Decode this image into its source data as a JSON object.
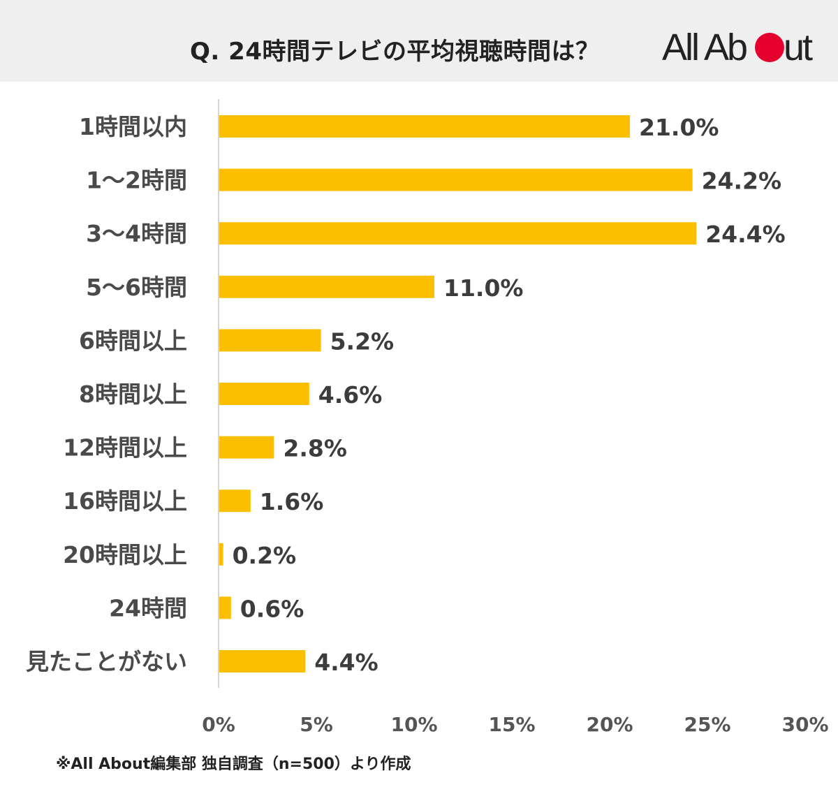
{
  "header": {
    "title": "Q. 24時間テレビの平均視聴時間は？",
    "logo_text_left": "All Ab",
    "logo_text_right": "ut",
    "logo_dot_color": "#e5002d"
  },
  "chart_data": {
    "type": "bar",
    "orientation": "horizontal",
    "categories": [
      "1時間以内",
      "1〜2時間",
      "3〜4時間",
      "5〜6時間",
      "6時間以上",
      "8時間以上",
      "12時間以上",
      "16時間以上",
      "20時間以上",
      "24時間",
      "見たことがない"
    ],
    "values": [
      21.0,
      24.2,
      24.4,
      11.0,
      5.2,
      4.6,
      2.8,
      1.6,
      0.2,
      0.6,
      4.4
    ],
    "value_labels": [
      "21.0%",
      "24.2%",
      "24.4%",
      "11.0%",
      "5.2%",
      "4.6%",
      "2.8%",
      "1.6%",
      "0.2%",
      "0.6%",
      "4.4%"
    ],
    "xlim": [
      0,
      30
    ],
    "x_ticks": [
      0,
      5,
      10,
      15,
      20,
      25,
      30
    ],
    "x_tick_labels": [
      "0%",
      "5%",
      "10%",
      "15%",
      "20%",
      "25%",
      "30%"
    ],
    "bar_color": "#fcbf00",
    "grid": false,
    "title": "Q. 24時間テレビの平均視聴時間は？",
    "xlabel": "",
    "ylabel": ""
  },
  "footer": {
    "source": "※All About編集部 独自調査（n=500）より作成"
  }
}
